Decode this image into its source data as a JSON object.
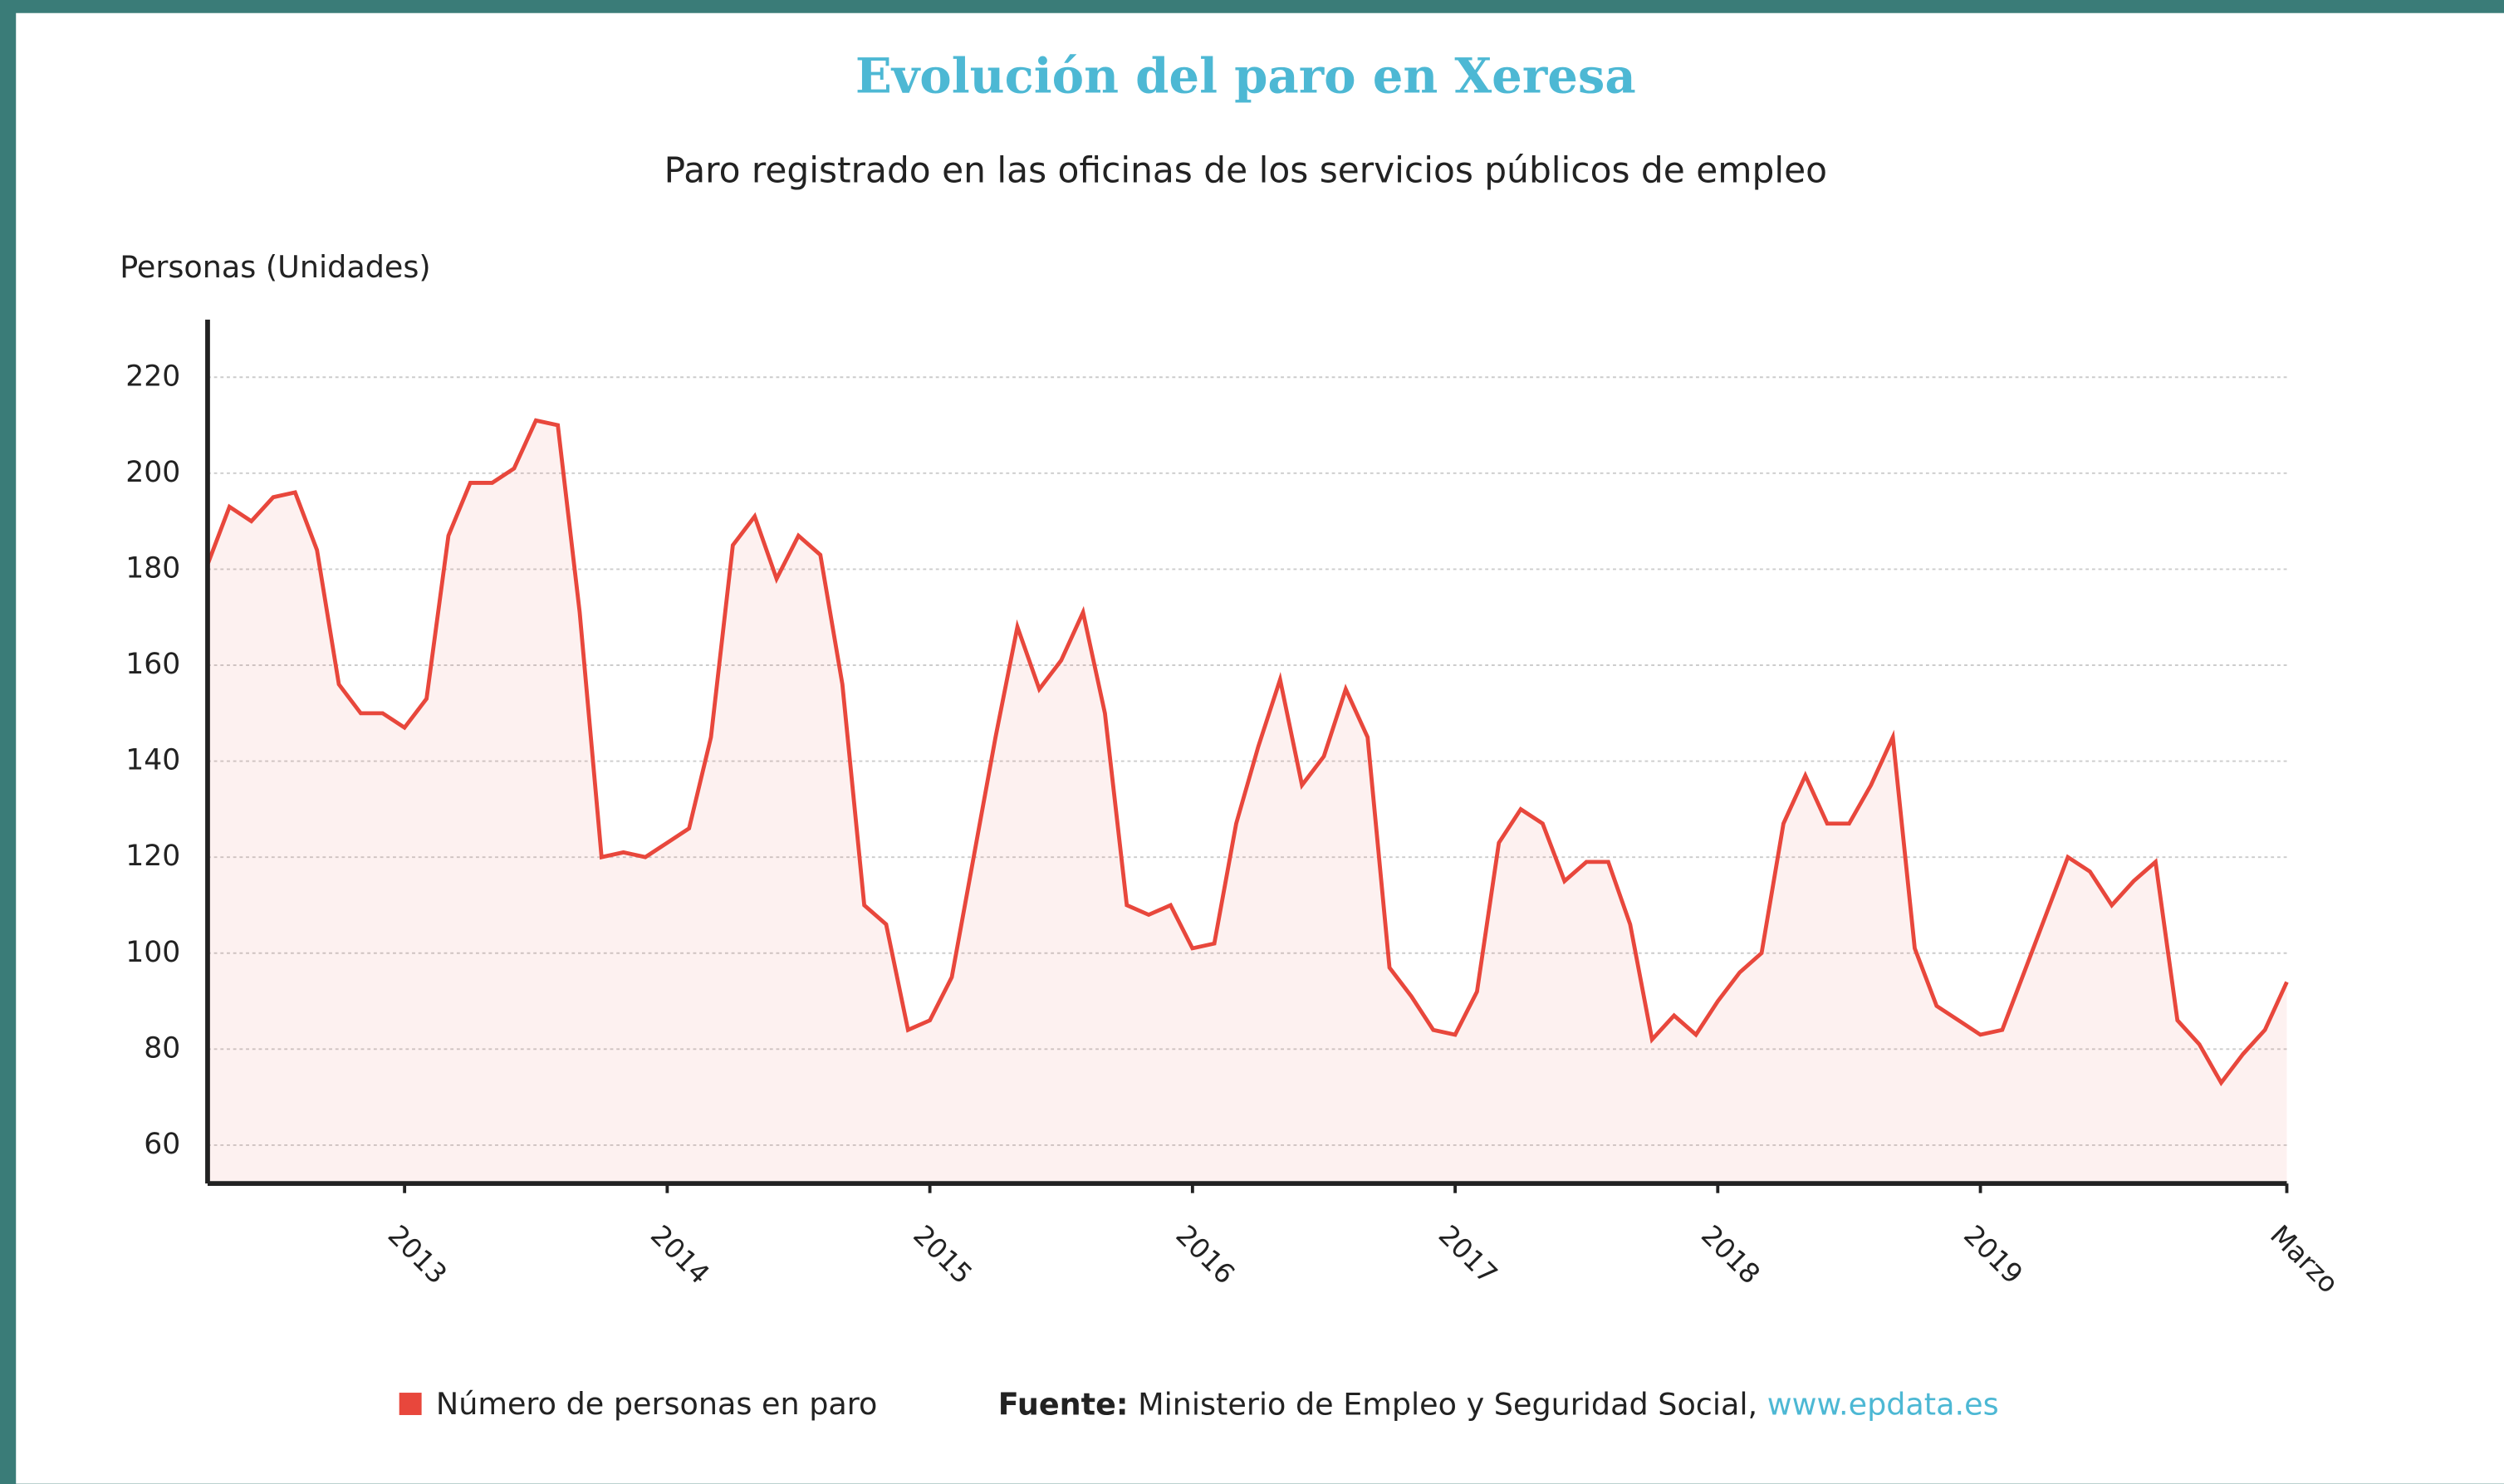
{
  "chart_data": {
    "type": "area",
    "title": "Evolución del paro en Xeresa",
    "subtitle": "Paro registrado en las oficinas de los servicios públicos de empleo",
    "y_axis_label": "Personas (Unidades)",
    "categories": [
      null,
      null,
      null,
      null,
      null,
      null,
      null,
      null,
      null,
      "2013",
      null,
      null,
      null,
      null,
      null,
      null,
      null,
      null,
      null,
      null,
      null,
      "2014",
      null,
      null,
      null,
      null,
      null,
      null,
      null,
      null,
      null,
      null,
      null,
      "2015",
      null,
      null,
      null,
      null,
      null,
      null,
      null,
      null,
      null,
      null,
      null,
      "2016",
      null,
      null,
      null,
      null,
      null,
      null,
      null,
      null,
      null,
      null,
      null,
      "2017",
      null,
      null,
      null,
      null,
      null,
      null,
      null,
      null,
      null,
      null,
      null,
      "2018",
      null,
      null,
      null,
      null,
      null,
      null,
      null,
      null,
      null,
      null,
      null,
      "2019",
      null,
      null,
      null,
      null,
      null,
      null,
      null,
      null,
      null,
      null,
      null,
      null,
      null,
      "Marzo"
    ],
    "series": [
      {
        "name": "Número de personas en paro",
        "color": "#e8473c",
        "values": [
          181,
          193,
          190,
          195,
          196,
          184,
          156,
          150,
          150,
          147,
          153,
          187,
          198,
          198,
          201,
          211,
          210,
          171,
          120,
          121,
          120,
          123,
          126,
          145,
          185,
          191,
          178,
          187,
          183,
          156,
          110,
          106,
          84,
          86,
          95,
          120,
          145,
          168,
          155,
          161,
          171,
          150,
          110,
          108,
          110,
          101,
          102,
          127,
          143,
          157,
          135,
          141,
          155,
          145,
          97,
          91,
          84,
          83,
          92,
          123,
          130,
          127,
          115,
          119,
          119,
          106,
          82,
          87,
          83,
          90,
          96,
          100,
          127,
          137,
          127,
          127,
          135,
          145,
          101,
          89,
          86,
          83,
          84,
          96,
          108,
          120,
          117,
          110,
          115,
          119,
          86,
          81,
          73,
          79,
          84,
          94
        ]
      }
    ],
    "ylim": [
      52,
      232
    ],
    "yticks": [
      60,
      80,
      100,
      120,
      140,
      160,
      180,
      200,
      220
    ],
    "grid": true,
    "source_label": "Fuente:",
    "source_text": "Ministerio de Empleo y Seguridad Social,",
    "source_link": "www.epdata.es"
  }
}
